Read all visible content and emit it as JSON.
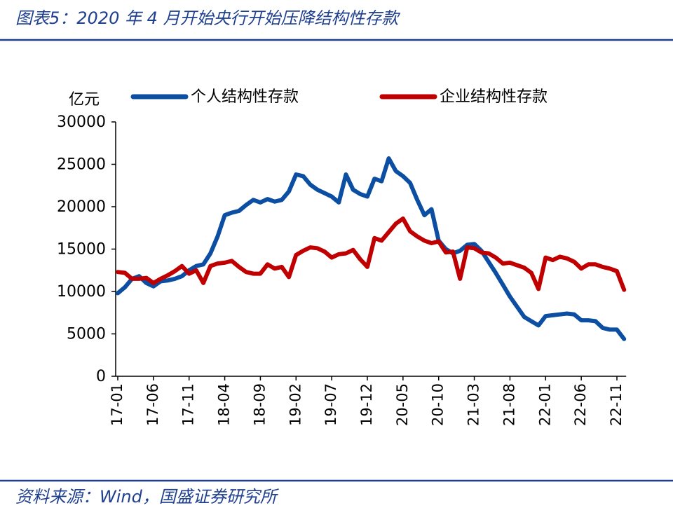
{
  "title": "图表5：2020 年 4 月开始央行开始压降结构性存款",
  "source": "资料来源：Wind，国盛证券研究所",
  "chart_data": {
    "type": "line",
    "y_label": "亿元",
    "categories": [
      "17-01",
      null,
      null,
      null,
      null,
      "17-06",
      null,
      null,
      null,
      null,
      "17-11",
      null,
      null,
      null,
      null,
      "18-04",
      null,
      null,
      null,
      null,
      "18-09",
      null,
      null,
      null,
      null,
      "19-02",
      null,
      null,
      null,
      null,
      "19-07",
      null,
      null,
      null,
      null,
      "19-12",
      null,
      null,
      null,
      null,
      "20-05",
      null,
      null,
      null,
      null,
      "20-10",
      null,
      null,
      null,
      null,
      "21-03",
      null,
      null,
      null,
      null,
      "21-08",
      null,
      null,
      null,
      null,
      "22-01",
      null,
      null,
      null,
      null,
      "22-06",
      null,
      null,
      null,
      null,
      "22-11",
      null
    ],
    "series": [
      {
        "name": "个人结构性存款",
        "color": "#0b4ea2",
        "values": [
          9800,
          10500,
          11500,
          11800,
          11000,
          10600,
          11200,
          11300,
          11500,
          11800,
          12500,
          13000,
          13200,
          14500,
          16500,
          19000,
          19300,
          19500,
          20200,
          20800,
          20500,
          20900,
          20600,
          20800,
          21800,
          23800,
          23600,
          22600,
          22000,
          21600,
          21200,
          20500,
          23800,
          22000,
          21500,
          21200,
          23300,
          23000,
          25700,
          24200,
          23600,
          22800,
          20800,
          19000,
          19700,
          16000,
          15000,
          14500,
          14800,
          15500,
          15600,
          14800,
          13500,
          12200,
          10800,
          9400,
          8200,
          7000,
          6500,
          6000,
          7100,
          7200,
          7300,
          7400,
          7300,
          6600,
          6600,
          6500,
          5700,
          5500,
          5500,
          4400
        ]
      },
      {
        "name": "企业结构性存款",
        "color": "#c00000",
        "values": [
          12300,
          12200,
          11500,
          11500,
          11600,
          11000,
          11500,
          11900,
          12400,
          13000,
          12100,
          12500,
          11000,
          13000,
          13300,
          13400,
          13600,
          12900,
          12300,
          12100,
          12100,
          13200,
          12700,
          12900,
          11700,
          14300,
          14800,
          15200,
          15100,
          14700,
          14000,
          14400,
          14500,
          14900,
          13800,
          12900,
          16300,
          16000,
          17000,
          18000,
          18600,
          17100,
          16500,
          16000,
          15700,
          15900,
          14600,
          14700,
          11500,
          15200,
          15100,
          14600,
          14500,
          14000,
          13300,
          13400,
          13100,
          12800,
          12200,
          10300,
          14000,
          13700,
          14100,
          13900,
          13500,
          12700,
          13200,
          13200,
          12900,
          12700,
          12400,
          10200
        ]
      }
    ],
    "ylim": [
      0,
      30000
    ],
    "yticks": [
      0,
      5000,
      10000,
      15000,
      20000,
      25000,
      30000
    ],
    "legend": "top"
  }
}
